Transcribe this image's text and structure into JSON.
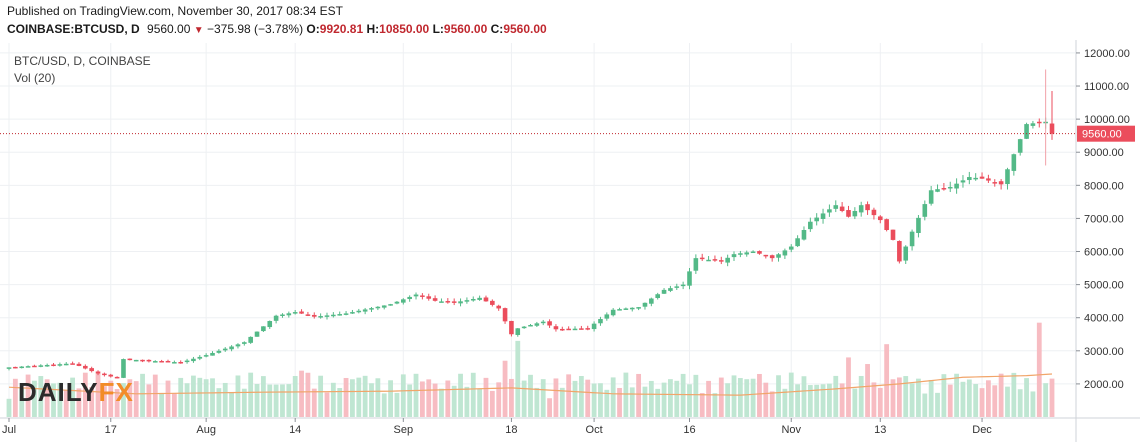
{
  "header": {
    "published": "Published on TradingView.com, November 30, 2017 08:34 EST",
    "symbol": "COINBASE:BTCUSD, D",
    "last": "9560.00",
    "change": "−375.98 (−3.78%)",
    "o_label": "O:",
    "o_value": "9920.81",
    "h_label": "H:",
    "h_value": "10850.00",
    "l_label": "L:",
    "l_value": "9560.00",
    "c_label": "C:",
    "c_value": "9560.00"
  },
  "legend": {
    "series_label": "BTC/USD, D, COINBASE",
    "volume_label": "Vol (20)"
  },
  "watermark": "DAILYFX",
  "colors": {
    "up": "#53b987",
    "down": "#eb4d5c",
    "vol_up": "#bfe6d2",
    "vol_down": "#f7bcc2",
    "vol_ma": "#f1a56a",
    "price_line": "#c0282f",
    "grid": "#eef0f3"
  },
  "chart_data": {
    "type": "candlestick",
    "y_axis": {
      "min": 1000,
      "max": 12300,
      "ticks": [
        2000,
        3000,
        4000,
        5000,
        6000,
        7000,
        8000,
        9000,
        10000,
        11000,
        12000
      ],
      "tick_labels": [
        "2000.00",
        "3000.00",
        "4000.00",
        "5000.00",
        "6000.00",
        "7000.00",
        "8000.00",
        "9000.00",
        "10000.00",
        "11000.00",
        "12000.00"
      ]
    },
    "x_axis": {
      "labels": [
        "Jul",
        "17",
        "Aug",
        "14",
        "Sep",
        "18",
        "Oct",
        "16",
        "Nov",
        "13",
        "Dec"
      ],
      "label_index": [
        0,
        16,
        31,
        45,
        62,
        79,
        92,
        107,
        123,
        137,
        153
      ]
    },
    "last_price": 9560,
    "last_price_label": "9560.00",
    "price_path": [
      [
        0,
        2500
      ],
      [
        10,
        2620
      ],
      [
        14,
        2310
      ],
      [
        17,
        2180
      ],
      [
        18,
        2750
      ],
      [
        22,
        2700
      ],
      [
        27,
        2650
      ],
      [
        31,
        2870
      ],
      [
        37,
        3260
      ],
      [
        42,
        4060
      ],
      [
        45,
        4170
      ],
      [
        48,
        4030
      ],
      [
        53,
        4130
      ],
      [
        60,
        4410
      ],
      [
        64,
        4700
      ],
      [
        67,
        4510
      ],
      [
        70,
        4460
      ],
      [
        74,
        4600
      ],
      [
        77,
        4280
      ],
      [
        79,
        3500
      ],
      [
        80,
        3680
      ],
      [
        84,
        3880
      ],
      [
        86,
        3650
      ],
      [
        91,
        3680
      ],
      [
        95,
        4240
      ],
      [
        99,
        4320
      ],
      [
        103,
        4840
      ],
      [
        106,
        5000
      ],
      [
        108,
        5800
      ],
      [
        112,
        5700
      ],
      [
        114,
        5920
      ],
      [
        117,
        6000
      ],
      [
        120,
        5800
      ],
      [
        123,
        6150
      ],
      [
        126,
        6900
      ],
      [
        130,
        7400
      ],
      [
        132,
        7050
      ],
      [
        134,
        7400
      ],
      [
        137,
        6950
      ],
      [
        139,
        6350
      ],
      [
        140,
        5700
      ],
      [
        142,
        6600
      ],
      [
        145,
        7850
      ],
      [
        148,
        7950
      ],
      [
        151,
        8250
      ],
      [
        153,
        8200
      ],
      [
        156,
        8030
      ],
      [
        160,
        9850
      ],
      [
        163,
        9920
      ],
      [
        164,
        9560
      ]
    ],
    "volume_ma": [
      [
        0,
        1900
      ],
      [
        20,
        1700
      ],
      [
        40,
        1750
      ],
      [
        60,
        1780
      ],
      [
        79,
        1880
      ],
      [
        95,
        1700
      ],
      [
        115,
        1660
      ],
      [
        130,
        1850
      ],
      [
        140,
        2000
      ],
      [
        150,
        2200
      ],
      [
        160,
        2250
      ],
      [
        164,
        2300
      ]
    ],
    "volume_spikes": [
      [
        46,
        2400
      ],
      [
        78,
        2700
      ],
      [
        80,
        3300
      ],
      [
        118,
        2300
      ],
      [
        132,
        2800
      ],
      [
        138,
        3200
      ],
      [
        162,
        3850
      ],
      [
        135,
        2600
      ]
    ]
  }
}
